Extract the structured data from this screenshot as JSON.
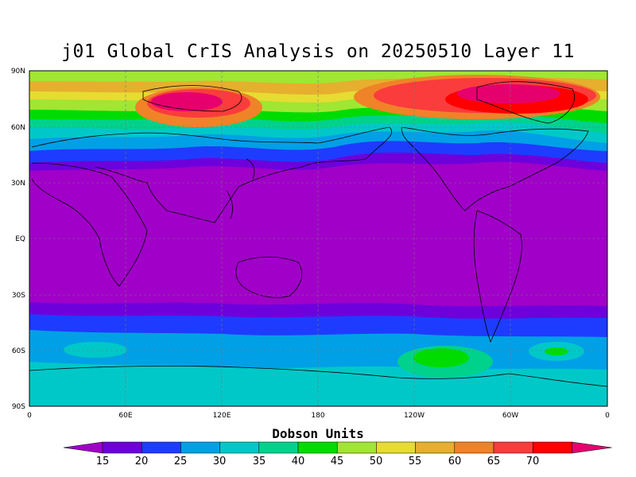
{
  "title": "j01 Global CrIS Analysis on 20250510 Layer 11",
  "lat_labels": [
    "90N",
    "60N",
    "30N",
    "EQ",
    "30S",
    "60S",
    "90S"
  ],
  "lon_labels": [
    "0",
    "60E",
    "120E",
    "180",
    "120W",
    "60W",
    "0"
  ],
  "colorbar": {
    "title": "Dobson Units",
    "ticks": [
      "15",
      "20",
      "25",
      "30",
      "35",
      "40",
      "45",
      "50",
      "55",
      "60",
      "65",
      "70"
    ],
    "colors": [
      "#a000c8",
      "#6e00dc",
      "#1e3cff",
      "#00a0e6",
      "#00c8c8",
      "#00d28c",
      "#00dc00",
      "#a0e632",
      "#e6dc32",
      "#e6af2d",
      "#f08228",
      "#fa3c3c",
      "#ff0000",
      "#e6006e"
    ]
  },
  "colors": {
    "ocean_tropics": "#a000c8",
    "arctic_peak": "#ff0000",
    "southern_band": "#00a0e6"
  }
}
